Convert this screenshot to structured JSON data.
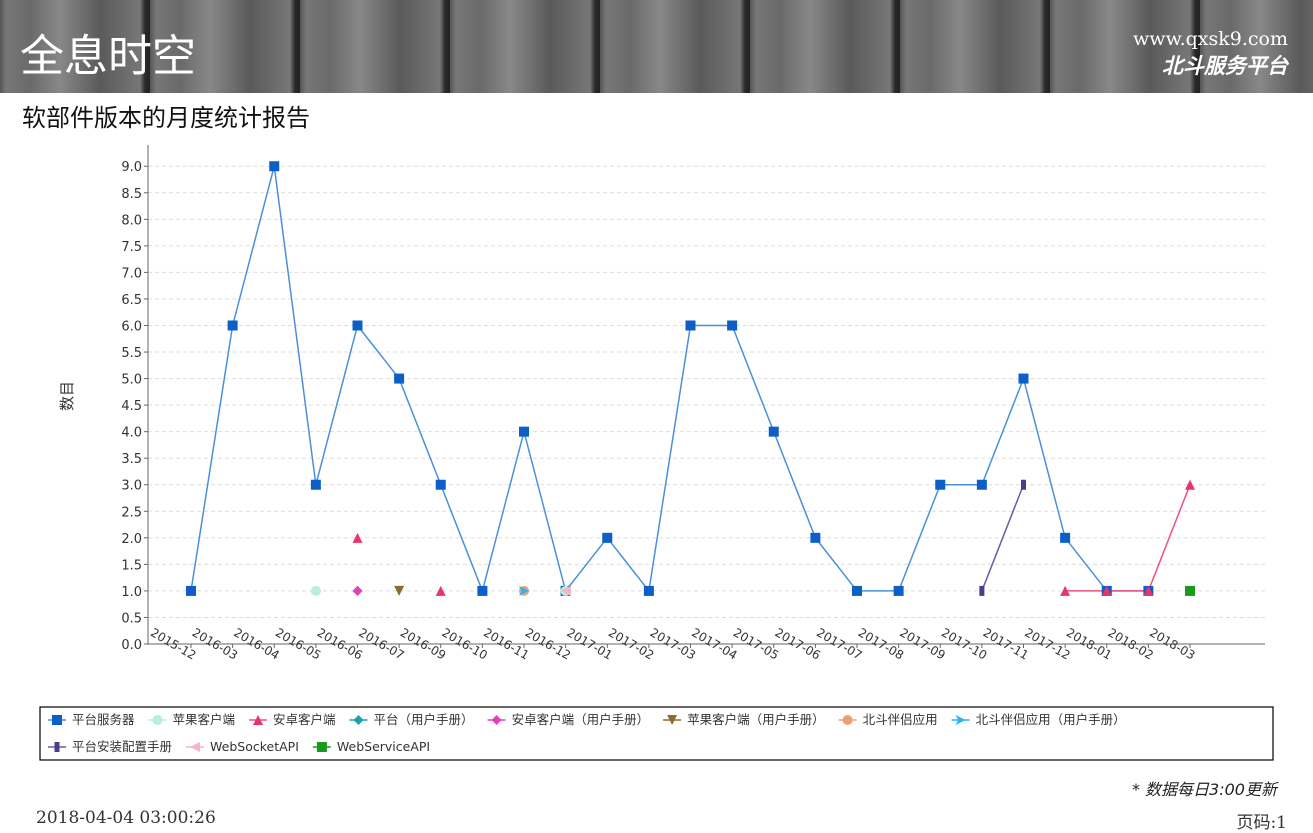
{
  "header": {
    "brand": "全息时空",
    "url": "www.qxsk9.com",
    "platform": "北斗服务平台"
  },
  "report_title": "软部件版本的月度统计报告",
  "chart_data": {
    "type": "line",
    "y_label": "数目",
    "categories": [
      "2015-12",
      "2016-03",
      "2016-04",
      "2016-05",
      "2016-06",
      "2016-07",
      "2016-09",
      "2016-10",
      "2016-11",
      "2016-12",
      "2017-01",
      "2017-02",
      "2017-03",
      "2017-04",
      "2017-05",
      "2017-06",
      "2017-07",
      "2017-08",
      "2017-09",
      "2017-10",
      "2017-11",
      "2017-12",
      "2018-01",
      "2018-02",
      "2018-03"
    ],
    "ylim": [
      0,
      9.4
    ],
    "yticks": [
      {
        "value": 0,
        "label": "0.0"
      },
      {
        "value": 0.5,
        "label": "0.5"
      },
      {
        "value": 1,
        "label": "1.0"
      },
      {
        "value": 1.5,
        "label": "1.5"
      },
      {
        "value": 2,
        "label": "2.0"
      },
      {
        "value": 2.5,
        "label": "2.5"
      },
      {
        "value": 3,
        "label": "3.0"
      },
      {
        "value": 3.5,
        "label": "3.5"
      },
      {
        "value": 4,
        "label": "4.0"
      },
      {
        "value": 4.5,
        "label": "4.5"
      },
      {
        "value": 5,
        "label": "5.0"
      },
      {
        "value": 5.5,
        "label": "5.5"
      },
      {
        "value": 6,
        "label": "6.0"
      },
      {
        "value": 6.5,
        "label": "6.5"
      },
      {
        "value": 7,
        "label": "7.0"
      },
      {
        "value": 7.5,
        "label": "7.5"
      },
      {
        "value": 8,
        "label": "8.0"
      },
      {
        "value": 8.5,
        "label": "8.5"
      },
      {
        "value": 9,
        "label": "9.0"
      }
    ],
    "grid": true,
    "series": [
      {
        "name": "平台服务器",
        "color": "#0b5fc6",
        "line_color": "#4a90d9",
        "marker": "square",
        "values": [
          1,
          6,
          9,
          3,
          6,
          5,
          3,
          1,
          4,
          1,
          2,
          1,
          6,
          6,
          4,
          2,
          1,
          1,
          3,
          3,
          5,
          2,
          1,
          1,
          null
        ]
      },
      {
        "name": "苹果客户端",
        "color": "#b4f0dc",
        "marker": "circle",
        "values": [
          null,
          null,
          null,
          1,
          null,
          null,
          null,
          null,
          null,
          1,
          null,
          null,
          null,
          null,
          null,
          null,
          null,
          null,
          null,
          null,
          null,
          null,
          null,
          null,
          null
        ]
      },
      {
        "name": "安卓客户端",
        "color": "#e8336d",
        "line_color": "#f0507e",
        "marker": "triangle",
        "values": [
          null,
          null,
          null,
          null,
          2,
          null,
          1,
          null,
          null,
          null,
          null,
          null,
          null,
          null,
          null,
          null,
          null,
          null,
          null,
          null,
          null,
          1,
          1,
          1,
          3
        ]
      },
      {
        "name": "平台（用户手册）",
        "color": "#1ca0b0",
        "marker": "diamond",
        "values": [
          null,
          null,
          null,
          null,
          1,
          null,
          null,
          null,
          null,
          null,
          null,
          null,
          null,
          null,
          null,
          null,
          null,
          null,
          null,
          null,
          null,
          null,
          null,
          null,
          null
        ]
      },
      {
        "name": "安卓客户端（用户手册）",
        "color": "#e040c0",
        "marker": "diamond",
        "values": [
          null,
          null,
          null,
          null,
          1,
          null,
          null,
          null,
          null,
          null,
          null,
          null,
          null,
          null,
          null,
          null,
          null,
          null,
          null,
          null,
          null,
          null,
          null,
          null,
          null
        ]
      },
      {
        "name": "苹果客户端（用户手册）",
        "color": "#8b6d2e",
        "marker": "triangle-down",
        "values": [
          null,
          null,
          null,
          null,
          null,
          1,
          null,
          null,
          null,
          null,
          null,
          null,
          null,
          null,
          null,
          null,
          null,
          null,
          null,
          null,
          null,
          null,
          null,
          null,
          null
        ]
      },
      {
        "name": "北斗伴侣应用",
        "color": "#f0a070",
        "marker": "circle",
        "values": [
          null,
          null,
          null,
          null,
          null,
          null,
          null,
          null,
          1,
          null,
          null,
          null,
          null,
          null,
          null,
          null,
          null,
          null,
          null,
          null,
          null,
          null,
          null,
          null,
          null
        ]
      },
      {
        "name": "北斗伴侣应用（用户手册）",
        "color": "#29b6f6",
        "marker": "arrow",
        "values": [
          null,
          null,
          null,
          null,
          null,
          null,
          null,
          null,
          1,
          null,
          null,
          null,
          null,
          null,
          null,
          null,
          null,
          null,
          null,
          null,
          null,
          null,
          null,
          null,
          null
        ]
      },
      {
        "name": "平台安装配置手册",
        "color": "#4b3c8c",
        "line_color": "#6a5aa8",
        "marker": "bar",
        "values": [
          null,
          null,
          null,
          null,
          null,
          null,
          null,
          null,
          null,
          null,
          null,
          null,
          null,
          null,
          null,
          null,
          null,
          null,
          null,
          1,
          3,
          null,
          null,
          null,
          null
        ]
      },
      {
        "name": "WebSocketAPI",
        "color": "#f4b6c2",
        "marker": "triangle-left",
        "values": [
          null,
          null,
          null,
          null,
          null,
          null,
          null,
          null,
          null,
          1,
          null,
          null,
          null,
          null,
          null,
          null,
          null,
          null,
          null,
          null,
          null,
          null,
          null,
          null,
          null
        ]
      },
      {
        "name": "WebServiceAPI",
        "color": "#1a9a1a",
        "marker": "square",
        "values": [
          null,
          null,
          null,
          null,
          null,
          null,
          null,
          null,
          null,
          null,
          null,
          null,
          null,
          null,
          null,
          null,
          null,
          null,
          null,
          null,
          null,
          null,
          null,
          null,
          1
        ]
      }
    ]
  },
  "footer": {
    "note": "* 数据每日3:00更新",
    "timestamp": "2018-04-04 03:00:26",
    "page": "页码:1"
  }
}
